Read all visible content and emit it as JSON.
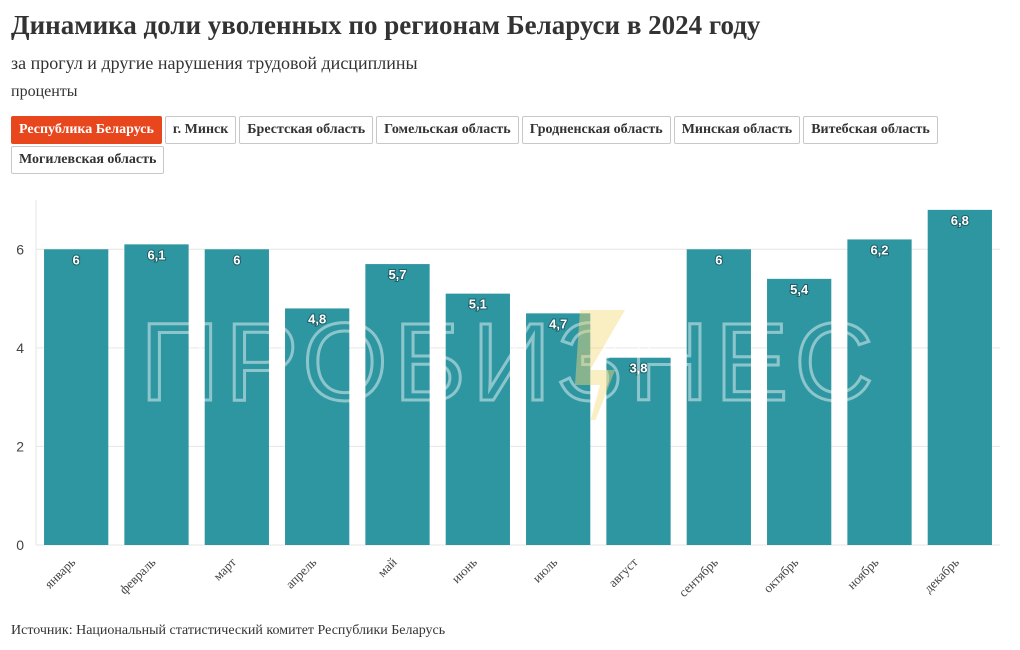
{
  "header": {
    "title": "Динамика доли уволенных по регионам Беларуси в 2024 году",
    "subtitle": "за прогул и другие нарушения трудовой дисциплины",
    "units": "проценты"
  },
  "tabs": [
    {
      "label": "Республика Беларусь",
      "active": true
    },
    {
      "label": "г. Минск",
      "active": false
    },
    {
      "label": "Брестская область",
      "active": false
    },
    {
      "label": "Гомельская область",
      "active": false
    },
    {
      "label": "Гродненская область",
      "active": false
    },
    {
      "label": "Минская область",
      "active": false
    },
    {
      "label": "Витебская область",
      "active": false
    },
    {
      "label": "Могилевская область",
      "active": false
    }
  ],
  "watermark": {
    "text": "ПРОБИЗНЕС"
  },
  "footer": {
    "source": "Источник: Национальный статистический комитет Республики Беларусь"
  },
  "colors": {
    "bar": "#2e96a1",
    "accent": "#e8461c",
    "grid": "#e6e6e6"
  },
  "chart_data": {
    "type": "bar",
    "categories": [
      "январь",
      "февраль",
      "март",
      "апрель",
      "май",
      "июнь",
      "июль",
      "август",
      "сентябрь",
      "октябрь",
      "ноябрь",
      "декабрь"
    ],
    "values": [
      6,
      6.1,
      6,
      4.8,
      5.7,
      5.1,
      4.7,
      3.8,
      6,
      5.4,
      6.2,
      6.8
    ],
    "value_labels": [
      "6",
      "6,1",
      "6",
      "4,8",
      "5,7",
      "5,1",
      "4,7",
      "3,8",
      "6",
      "5,4",
      "6,2",
      "6,8"
    ],
    "yticks": [
      0,
      2,
      4,
      6
    ],
    "ylim": [
      0,
      7
    ],
    "grid": true
  }
}
